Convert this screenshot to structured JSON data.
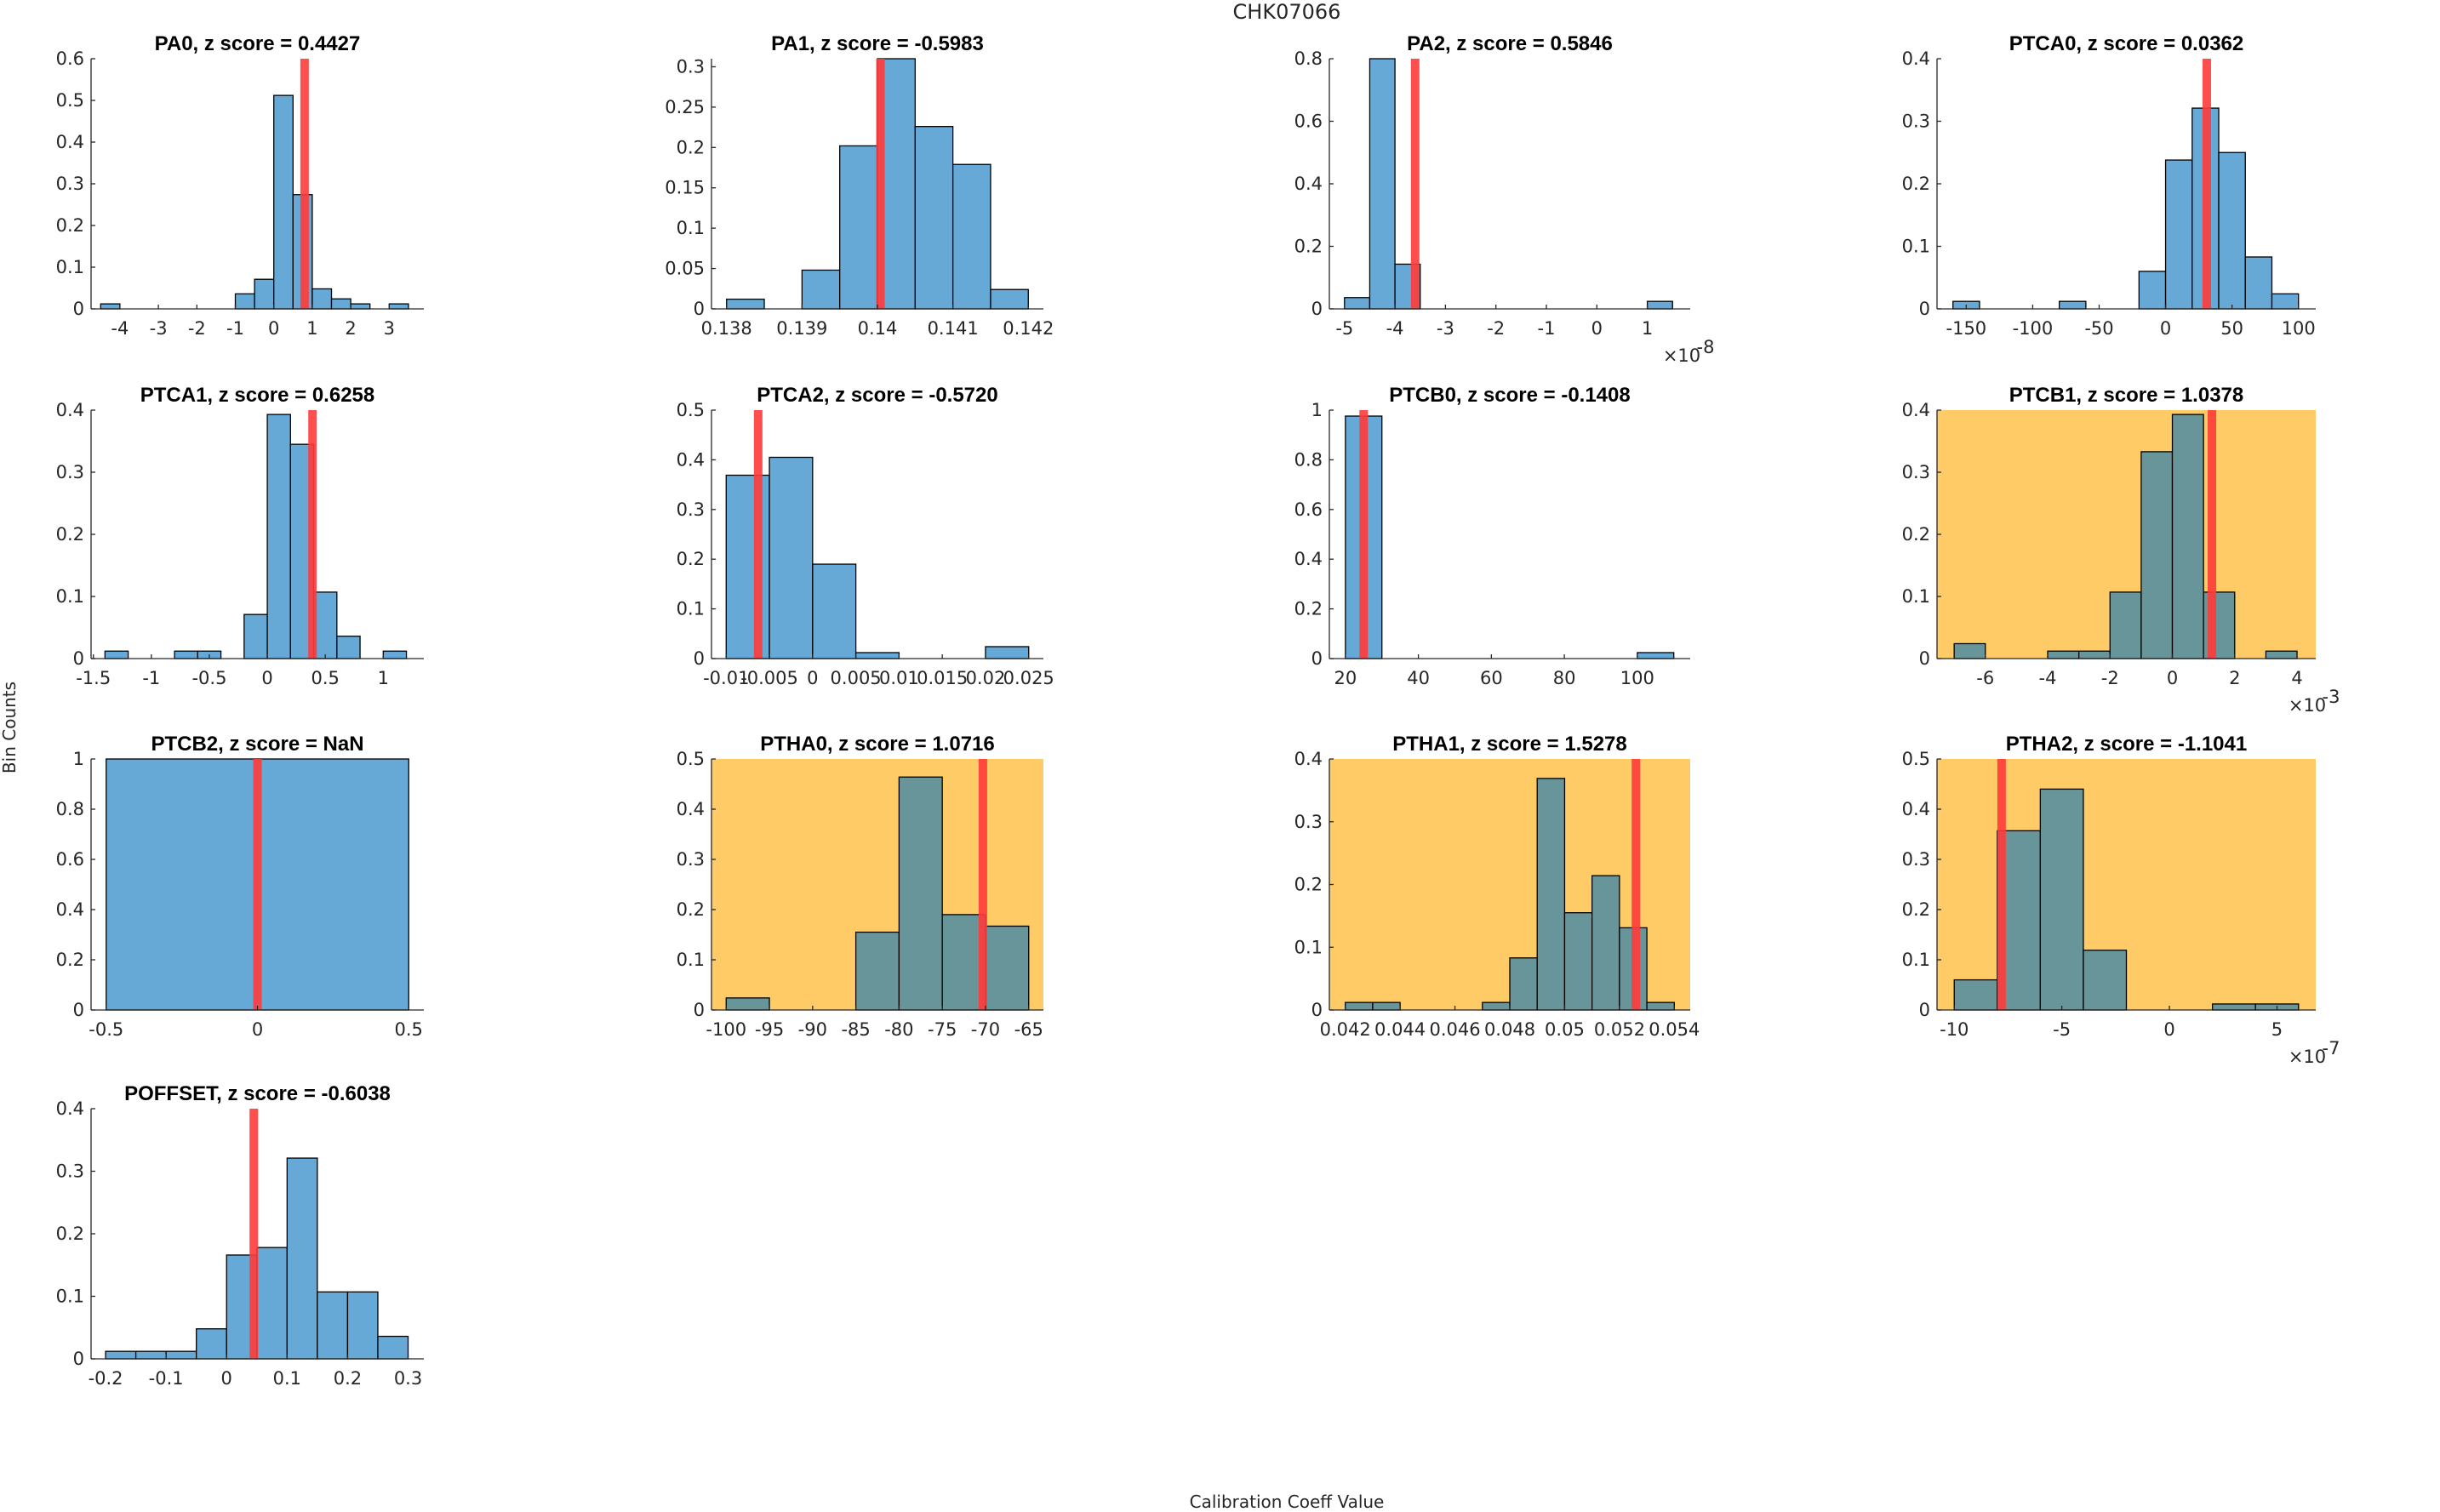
{
  "figure": {
    "title": "CHK07066",
    "xlabel": "Calibration Coeff Value",
    "ylabel": "Bin Counts",
    "colors": {
      "bar_normal": "#66a9d6",
      "bar_flagged": "#689599",
      "bg_flagged": "#fecb66",
      "marker_line": "#ff3b3b",
      "bar_edge": "#000000"
    }
  },
  "chart_data": [
    {
      "type": "bar",
      "title": "PA0, z score = 0.4427",
      "param": "PA0",
      "z_score": 0.4427,
      "flagged": false,
      "xlim": [
        -4.75,
        3.9
      ],
      "ylim": [
        0,
        0.6
      ],
      "xticks": [
        -4,
        -3,
        -2,
        -1,
        0,
        1,
        2,
        3
      ],
      "xtick_labels": [
        "-4",
        "-3",
        "-2",
        "-1",
        "0",
        "1",
        "2",
        "3"
      ],
      "yticks": [
        0,
        0.1,
        0.2,
        0.3,
        0.4,
        0.5,
        0.6
      ],
      "ytick_labels": [
        "0",
        "0.1",
        "0.2",
        "0.3",
        "0.4",
        "0.5",
        "0.6"
      ],
      "bin_edges": [
        -4.5,
        -4.0,
        -3.5,
        -3.0,
        -2.5,
        -2.0,
        -1.5,
        -1.0,
        -0.5,
        0.0,
        0.5,
        1.0,
        1.5,
        2.0,
        2.5,
        3.0,
        3.5
      ],
      "values": [
        0.012,
        0,
        0,
        0,
        0,
        0,
        0,
        0.036,
        0.071,
        0.512,
        0.274,
        0.048,
        0.024,
        0.012,
        0,
        0.012
      ],
      "marker_x": 0.8,
      "exponent": ""
    },
    {
      "type": "bar",
      "title": "PA1, z score = -0.5983",
      "param": "PA1",
      "z_score": -0.5983,
      "flagged": false,
      "xlim": [
        0.1378,
        0.1422
      ],
      "ylim": [
        0,
        0.31
      ],
      "xticks": [
        0.138,
        0.139,
        0.14,
        0.141,
        0.142
      ],
      "xtick_labels": [
        "0.138",
        "0.139",
        "0.14",
        "0.141",
        "0.142"
      ],
      "yticks": [
        0,
        0.05,
        0.1,
        0.15,
        0.2,
        0.25,
        0.3
      ],
      "ytick_labels": [
        "0",
        "0.05",
        "0.1",
        "0.15",
        "0.2",
        "0.25",
        "0.3"
      ],
      "bin_edges": [
        0.138,
        0.1385,
        0.139,
        0.1395,
        0.14,
        0.1405,
        0.141,
        0.1415,
        0.142
      ],
      "values": [
        0.012,
        0,
        0.048,
        0.202,
        0.31,
        0.226,
        0.179,
        0.024
      ],
      "marker_x": 0.14004,
      "exponent": ""
    },
    {
      "type": "bar",
      "title": "PA2, z score = 0.5846",
      "param": "PA2",
      "z_score": 0.5846,
      "flagged": false,
      "xlim": [
        -5.3,
        1.85
      ],
      "ylim": [
        0,
        0.8
      ],
      "xticks": [
        -5,
        -4,
        -3,
        -2,
        -1,
        0,
        1
      ],
      "xtick_labels": [
        "-5",
        "-4",
        "-3",
        "-2",
        "-1",
        "0",
        "1"
      ],
      "yticks": [
        0,
        0.2,
        0.4,
        0.6,
        0.8
      ],
      "ytick_labels": [
        "0",
        "0.2",
        "0.4",
        "0.6",
        "0.8"
      ],
      "bin_edges": [
        -5.0,
        -4.5,
        -4.0,
        -3.5,
        -3.0,
        -2.5,
        -2.0,
        -1.5,
        -1.0,
        -0.5,
        0.0,
        0.5,
        1.0,
        1.5
      ],
      "values": [
        0.036,
        0.8,
        0.143,
        0,
        0,
        0,
        0,
        0,
        0,
        0,
        0,
        0,
        0.024
      ],
      "marker_x": -3.6,
      "exponent": "×10",
      "exponent_power": "-8"
    },
    {
      "type": "bar",
      "title": "PTCA0, z score = 0.0362",
      "param": "PTCA0",
      "z_score": 0.0362,
      "flagged": false,
      "xlim": [
        -172,
        113
      ],
      "ylim": [
        0,
        0.4
      ],
      "xticks": [
        -150,
        -100,
        -50,
        0,
        50,
        100
      ],
      "xtick_labels": [
        "-150",
        "-100",
        "-50",
        "0",
        "50",
        "100"
      ],
      "yticks": [
        0,
        0.1,
        0.2,
        0.3,
        0.4
      ],
      "ytick_labels": [
        "0",
        "0.1",
        "0.2",
        "0.3",
        "0.4"
      ],
      "bin_edges": [
        -160,
        -140,
        -120,
        -100,
        -80,
        -60,
        -40,
        -20,
        0,
        20,
        40,
        60,
        80,
        100
      ],
      "values": [
        0.012,
        0,
        0,
        0,
        0.012,
        0,
        0,
        0.06,
        0.238,
        0.321,
        0.25,
        0.083,
        0.024
      ],
      "marker_x": 31,
      "exponent": ""
    },
    {
      "type": "bar",
      "title": "PTCA1, z score = 0.6258",
      "param": "PTCA1",
      "z_score": 0.6258,
      "flagged": false,
      "xlim": [
        -1.52,
        1.35
      ],
      "ylim": [
        0,
        0.4
      ],
      "xticks": [
        -1.5,
        -1,
        -0.5,
        0,
        0.5,
        1
      ],
      "xtick_labels": [
        "-1.5",
        "-1",
        "-0.5",
        "0",
        "0.5",
        "1"
      ],
      "yticks": [
        0,
        0.1,
        0.2,
        0.3,
        0.4
      ],
      "ytick_labels": [
        "0",
        "0.1",
        "0.2",
        "0.3",
        "0.4"
      ],
      "bin_edges": [
        -1.4,
        -1.2,
        -1.0,
        -0.8,
        -0.6,
        -0.4,
        -0.2,
        0.0,
        0.2,
        0.4,
        0.6,
        0.8,
        1.0,
        1.2
      ],
      "values": [
        0.012,
        0,
        0,
        0.012,
        0.012,
        0,
        0.071,
        0.393,
        0.345,
        0.107,
        0.036,
        0,
        0.012
      ],
      "marker_x": 0.39,
      "exponent": ""
    },
    {
      "type": "bar",
      "title": "PTCA2, z score = -0.5720",
      "param": "PTCA2",
      "z_score": -0.572,
      "flagged": false,
      "xlim": [
        -0.0117,
        0.0267
      ],
      "ylim": [
        0,
        0.5
      ],
      "xticks": [
        -0.01,
        -0.005,
        0,
        0.005,
        0.01,
        0.015,
        0.02,
        0.025
      ],
      "xtick_labels": [
        "-0.01",
        "-0.005",
        "0",
        "0.005",
        "0.01",
        "0.015",
        "0.02",
        "0.025"
      ],
      "yticks": [
        0,
        0.1,
        0.2,
        0.3,
        0.4,
        0.5
      ],
      "ytick_labels": [
        "0",
        "0.1",
        "0.2",
        "0.3",
        "0.4",
        "0.5"
      ],
      "bin_edges": [
        -0.01,
        -0.005,
        0.0,
        0.005,
        0.01,
        0.015,
        0.02,
        0.025
      ],
      "values": [
        0.369,
        0.405,
        0.19,
        0.012,
        0,
        0,
        0.024
      ],
      "marker_x": -0.0063,
      "exponent": ""
    },
    {
      "type": "bar",
      "title": "PTCB0, z score = -0.1408",
      "param": "PTCB0",
      "z_score": -0.1408,
      "flagged": false,
      "xlim": [
        15.6,
        114.5
      ],
      "ylim": [
        0,
        1
      ],
      "xticks": [
        20,
        40,
        60,
        80,
        100
      ],
      "xtick_labels": [
        "20",
        "40",
        "60",
        "80",
        "100"
      ],
      "yticks": [
        0,
        0.2,
        0.4,
        0.6,
        0.8,
        1
      ],
      "ytick_labels": [
        "0",
        "0.2",
        "0.4",
        "0.6",
        "0.8",
        "1"
      ],
      "bin_edges": [
        20,
        30,
        40,
        50,
        60,
        70,
        80,
        90,
        100,
        110
      ],
      "values": [
        0.976,
        0,
        0,
        0,
        0,
        0,
        0,
        0,
        0.024
      ],
      "marker_x": 25,
      "exponent": ""
    },
    {
      "type": "bar",
      "title": "PTCB1, z score = 1.0378",
      "param": "PTCB1",
      "z_score": 1.0378,
      "flagged": true,
      "xlim": [
        -7.55,
        4.6
      ],
      "ylim": [
        0,
        0.4
      ],
      "xticks": [
        -6,
        -4,
        -2,
        0,
        2,
        4
      ],
      "xtick_labels": [
        "-6",
        "-4",
        "-2",
        "0",
        "2",
        "4"
      ],
      "yticks": [
        0,
        0.1,
        0.2,
        0.3,
        0.4
      ],
      "ytick_labels": [
        "0",
        "0.1",
        "0.2",
        "0.3",
        "0.4"
      ],
      "bin_edges": [
        -7,
        -6,
        -5,
        -4,
        -3,
        -2,
        -1,
        0,
        1,
        2,
        3,
        4
      ],
      "values": [
        0.024,
        0,
        0,
        0.012,
        0.012,
        0.107,
        0.333,
        0.393,
        0.107,
        0,
        0.012
      ],
      "marker_x": 1.27,
      "exponent": "×10",
      "exponent_power": "-3"
    },
    {
      "type": "bar",
      "title": "PTCB2, z score = NaN",
      "param": "PTCB2",
      "z_score": "NaN",
      "flagged": false,
      "xlim": [
        -0.55,
        0.55
      ],
      "ylim": [
        0,
        1
      ],
      "xticks": [
        -0.5,
        0,
        0.5
      ],
      "xtick_labels": [
        "-0.5",
        "0",
        "0.5"
      ],
      "yticks": [
        0,
        0.2,
        0.4,
        0.6,
        0.8,
        1
      ],
      "ytick_labels": [
        "0",
        "0.2",
        "0.4",
        "0.6",
        "0.8",
        "1"
      ],
      "bin_edges": [
        -0.5,
        0.5
      ],
      "values": [
        1.0
      ],
      "marker_x": 0,
      "exponent": ""
    },
    {
      "type": "bar",
      "title": "PTHA0, z score = 1.0716",
      "param": "PTHA0",
      "z_score": 1.0716,
      "flagged": true,
      "xlim": [
        -101.7,
        -63.3
      ],
      "ylim": [
        0,
        0.5
      ],
      "xticks": [
        -100,
        -95,
        -90,
        -85,
        -80,
        -75,
        -70,
        -65
      ],
      "xtick_labels": [
        "-100",
        "-95",
        "-90",
        "-85",
        "-80",
        "-75",
        "-70",
        "-65"
      ],
      "yticks": [
        0,
        0.1,
        0.2,
        0.3,
        0.4,
        0.5
      ],
      "ytick_labels": [
        "0",
        "0.1",
        "0.2",
        "0.3",
        "0.4",
        "0.5"
      ],
      "bin_edges": [
        -100,
        -95,
        -90,
        -85,
        -80,
        -75,
        -70,
        -65
      ],
      "values": [
        0.024,
        0,
        0,
        0.155,
        0.464,
        0.19,
        0.167
      ],
      "marker_x": -70.3,
      "exponent": ""
    },
    {
      "type": "bar",
      "title": "PTHA1, z score = 1.5278",
      "param": "PTHA1",
      "z_score": 1.5278,
      "flagged": true,
      "xlim": [
        0.04142,
        0.05458
      ],
      "ylim": [
        0,
        0.4
      ],
      "xticks": [
        0.042,
        0.044,
        0.046,
        0.048,
        0.05,
        0.052,
        0.054
      ],
      "xtick_labels": [
        "0.042",
        "0.044",
        "0.046",
        "0.048",
        "0.05",
        "0.052",
        "0.054"
      ],
      "yticks": [
        0,
        0.1,
        0.2,
        0.3,
        0.4
      ],
      "ytick_labels": [
        "0",
        "0.1",
        "0.2",
        "0.3",
        "0.4"
      ],
      "bin_edges": [
        0.042,
        0.043,
        0.044,
        0.045,
        0.046,
        0.047,
        0.048,
        0.049,
        0.05,
        0.051,
        0.052,
        0.053,
        0.054
      ],
      "values": [
        0.012,
        0.012,
        0,
        0,
        0,
        0.012,
        0.083,
        0.369,
        0.155,
        0.214,
        0.131,
        0.012
      ],
      "marker_x": 0.0526,
      "exponent": ""
    },
    {
      "type": "bar",
      "title": "PTHA2, z score = -1.1041",
      "param": "PTHA2",
      "z_score": -1.1041,
      "flagged": true,
      "xlim": [
        -10.8,
        6.8
      ],
      "ylim": [
        0,
        0.5
      ],
      "xticks": [
        -10,
        -5,
        0,
        5
      ],
      "xtick_labels": [
        "-10",
        "-5",
        "0",
        "5"
      ],
      "yticks": [
        0,
        0.1,
        0.2,
        0.3,
        0.4,
        0.5
      ],
      "ytick_labels": [
        "0",
        "0.1",
        "0.2",
        "0.3",
        "0.4",
        "0.5"
      ],
      "bin_edges": [
        -10,
        -8,
        -6,
        -4,
        -2,
        0,
        2,
        4,
        6
      ],
      "values": [
        0.06,
        0.357,
        0.44,
        0.119,
        0,
        0,
        0.012,
        0.012
      ],
      "marker_x": -7.8,
      "exponent": "×10",
      "exponent_power": "-7"
    },
    {
      "type": "bar",
      "title": "POFFSET, z score = -0.6038",
      "param": "POFFSET",
      "z_score": -0.6038,
      "flagged": false,
      "xlim": [
        -0.224,
        0.326
      ],
      "ylim": [
        0,
        0.4
      ],
      "xticks": [
        -0.2,
        -0.1,
        0,
        0.1,
        0.2,
        0.3
      ],
      "xtick_labels": [
        "-0.2",
        "-0.1",
        "0",
        "0.1",
        "0.2",
        "0.3"
      ],
      "yticks": [
        0,
        0.1,
        0.2,
        0.3,
        0.4
      ],
      "ytick_labels": [
        "0",
        "0.1",
        "0.2",
        "0.3",
        "0.4"
      ],
      "bin_edges": [
        -0.2,
        -0.15,
        -0.1,
        -0.05,
        0.0,
        0.05,
        0.1,
        0.15,
        0.2,
        0.25,
        0.3
      ],
      "values": [
        0.012,
        0.012,
        0.012,
        0.048,
        0.166,
        0.178,
        0.321,
        0.107,
        0.107,
        0.036
      ],
      "marker_x": 0.045,
      "exponent": ""
    }
  ]
}
